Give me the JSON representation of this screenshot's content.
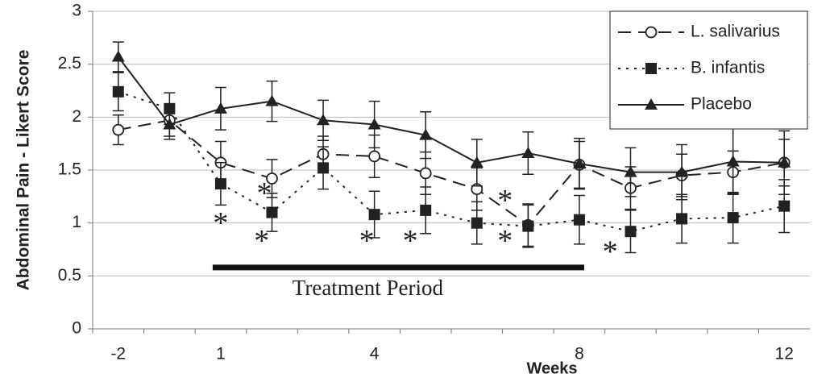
{
  "chart_data": {
    "type": "line",
    "y_label": "Abdominal Pain - Likert Score",
    "x_label": "Weeks",
    "categories": [
      "-2",
      null,
      "1",
      null,
      null,
      "4",
      null,
      null,
      null,
      "8",
      null,
      null,
      null,
      "12"
    ],
    "series": [
      {
        "name": "L. salivarius",
        "color": "#222222",
        "line_style": "dashed",
        "marker": "circle-open",
        "values": [
          1.88,
          1.97,
          1.57,
          1.42,
          1.65,
          1.63,
          1.47,
          1.32,
          0.98,
          1.55,
          1.33,
          1.45,
          1.48,
          1.57
        ],
        "errors": [
          0.14,
          0.15,
          0.2,
          0.18,
          0.17,
          0.2,
          0.2,
          0.2,
          0.2,
          0.22,
          0.2,
          0.2,
          0.2,
          0.22
        ]
      },
      {
        "name": "B. infantis",
        "color": "#222222",
        "line_style": "dotted",
        "marker": "square",
        "values": [
          2.24,
          2.08,
          1.37,
          1.1,
          1.52,
          1.08,
          1.12,
          1.0,
          0.97,
          1.03,
          0.92,
          1.04,
          1.05,
          1.16
        ],
        "errors": [
          0.18,
          0.15,
          0.2,
          0.18,
          0.2,
          0.22,
          0.22,
          0.2,
          0.2,
          0.23,
          0.2,
          0.23,
          0.24,
          0.25
        ]
      },
      {
        "name": "Placebo",
        "color": "#222222",
        "line_style": "solid",
        "marker": "triangle",
        "values": [
          2.57,
          1.93,
          2.08,
          2.15,
          1.97,
          1.93,
          1.83,
          1.57,
          1.66,
          1.56,
          1.48,
          1.48,
          1.58,
          1.57
        ],
        "errors": [
          0.14,
          0.14,
          0.2,
          0.19,
          0.19,
          0.22,
          0.22,
          0.22,
          0.2,
          0.24,
          0.23,
          0.26,
          0.31,
          0.3
        ]
      }
    ],
    "ylim": [
      0,
      3
    ],
    "yticks": [
      0,
      0.5,
      1,
      1.5,
      2,
      2.5,
      3
    ],
    "grid": true,
    "legend": "upper right",
    "annotations": [
      {
        "text": "*",
        "x": 2,
        "y": 1.05
      },
      {
        "text": "*",
        "x": 2.85,
        "y": 1.33
      },
      {
        "text": "*",
        "x": 2.8,
        "y": 0.88
      },
      {
        "text": "*",
        "x": 4.85,
        "y": 0.88
      },
      {
        "text": "*",
        "x": 5.7,
        "y": 0.88
      },
      {
        "text": "*",
        "x": 7.55,
        "y": 1.26
      },
      {
        "text": "*",
        "x": 7.55,
        "y": 0.88
      },
      {
        "text": "*",
        "x": 9.6,
        "y": 0.78
      }
    ],
    "treatment_period": {
      "label": "Treatment Period",
      "start": 2,
      "end": 9,
      "y": 0.58
    }
  }
}
